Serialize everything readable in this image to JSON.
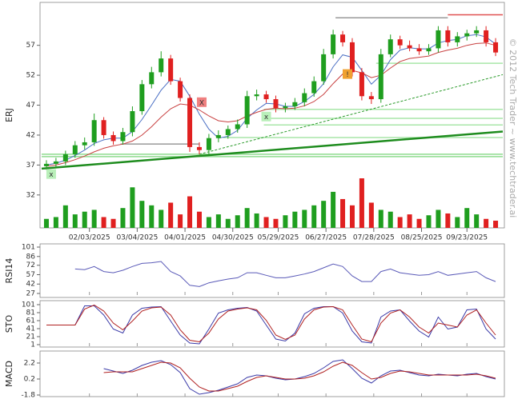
{
  "watermark": "© 2012 Tech Trader ~ www.techtrader.ai",
  "chart_data": [
    {
      "type": "candlestick",
      "label": "ERJ",
      "up_color": "#1f9e1f",
      "down_color": "#e02020",
      "ma_colors": [
        "#4a6fc4",
        "#c84040"
      ],
      "x": [
        2,
        6,
        10,
        14,
        18,
        22,
        26,
        30,
        34,
        38,
        42,
        46,
        50,
        54,
        58,
        62,
        66,
        70,
        74,
        78,
        82,
        86,
        90,
        94,
        98,
        102,
        106,
        110,
        114,
        118,
        122,
        126,
        130,
        134,
        138,
        142,
        146,
        150,
        154,
        158,
        162,
        166,
        170,
        174,
        178,
        182,
        186,
        190
      ],
      "xlim": [
        0,
        193
      ],
      "xticks": [
        {
          "value": 20,
          "label": "02/03/2025"
        },
        {
          "value": 40,
          "label": "03/04/2025"
        },
        {
          "value": 60,
          "label": "04/01/2025"
        },
        {
          "value": 80,
          "label": "04/30/2025"
        },
        {
          "value": 99,
          "label": "05/29/2025"
        },
        {
          "value": 119,
          "label": "06/27/2025"
        },
        {
          "value": 139,
          "label": "07/28/2025"
        },
        {
          "value": 159,
          "label": "08/25/2025"
        },
        {
          "value": 178,
          "label": "09/23/2025"
        }
      ],
      "ylim": [
        26.5,
        63.9
      ],
      "yticks": [
        32,
        37,
        42,
        47,
        52,
        57
      ],
      "open": [
        36.8,
        37.2,
        37.6,
        38.8,
        40.3,
        40.8,
        44.5,
        42.0,
        41.0,
        42.5,
        46.0,
        50.5,
        52.5,
        54.8,
        51.0,
        48.2,
        40.0,
        39.5,
        41.5,
        42.0,
        43.0,
        43.8,
        48.5,
        48.8,
        48.0,
        46.5,
        46.8,
        47.5,
        49.0,
        51.0,
        55.5,
        58.8,
        57.5,
        52.5,
        48.5,
        48.0,
        55.5,
        58.0,
        57.0,
        56.5,
        56.0,
        56.5,
        59.5,
        57.5,
        58.5,
        59.0,
        59.5,
        57.5
      ],
      "high": [
        37.8,
        38.2,
        39.4,
        41.0,
        41.6,
        45.6,
        45.0,
        42.6,
        43.2,
        46.8,
        51.2,
        53.4,
        56.0,
        55.4,
        51.6,
        48.8,
        40.8,
        42.2,
        42.8,
        43.6,
        44.6,
        49.4,
        49.6,
        49.4,
        48.6,
        47.4,
        48.2,
        49.8,
        51.8,
        56.4,
        59.6,
        59.4,
        58.2,
        53.2,
        49.2,
        56.4,
        58.8,
        58.6,
        57.8,
        57.2,
        57.2,
        60.2,
        60.2,
        59.2,
        59.6,
        60.2,
        60.2,
        58.2
      ],
      "low": [
        36.2,
        36.6,
        37.0,
        38.2,
        39.6,
        40.2,
        41.4,
        40.4,
        40.4,
        41.8,
        45.4,
        49.8,
        51.8,
        50.4,
        47.6,
        39.2,
        38.8,
        38.8,
        40.8,
        41.4,
        42.4,
        43.2,
        47.8,
        47.4,
        45.8,
        45.8,
        46.2,
        46.8,
        48.4,
        50.4,
        54.8,
        56.8,
        51.8,
        47.8,
        47.2,
        47.4,
        55.0,
        56.4,
        56.0,
        55.4,
        55.4,
        55.8,
        56.8,
        56.8,
        57.8,
        58.4,
        56.8,
        55.2
      ],
      "close": [
        37.2,
        37.6,
        38.8,
        40.3,
        40.8,
        44.5,
        42.0,
        41.0,
        42.5,
        46.0,
        50.5,
        52.5,
        54.8,
        51.0,
        48.2,
        40.0,
        39.5,
        41.5,
        42.0,
        43.0,
        43.8,
        48.5,
        48.8,
        48.0,
        46.5,
        46.8,
        47.5,
        49.0,
        51.0,
        55.5,
        58.8,
        57.5,
        52.5,
        48.5,
        48.0,
        55.5,
        58.0,
        57.0,
        56.5,
        56.0,
        56.5,
        59.5,
        57.5,
        58.5,
        59.0,
        59.5,
        57.5,
        55.8
      ],
      "volume": [
        10,
        12,
        25,
        15,
        18,
        20,
        12,
        10,
        22,
        45,
        30,
        25,
        20,
        28,
        15,
        35,
        18,
        12,
        15,
        10,
        14,
        22,
        16,
        12,
        10,
        14,
        18,
        20,
        25,
        30,
        40,
        32,
        25,
        55,
        28,
        20,
        18,
        12,
        15,
        10,
        14,
        20,
        16,
        12,
        22,
        15,
        10,
        8
      ],
      "moving_averages": [
        {
          "color": "#4a6fc4",
          "values": [
            37.0,
            37.3,
            37.8,
            38.6,
            39.5,
            40.6,
            41.2,
            41.5,
            41.5,
            42.6,
            44.6,
            47.0,
            49.5,
            51.3,
            51.0,
            48.5,
            45.5,
            43.0,
            41.5,
            41.8,
            42.8,
            44.8,
            46.2,
            47.3,
            47.2,
            46.8,
            46.8,
            47.6,
            48.8,
            50.6,
            53.4,
            55.4,
            55.0,
            52.8,
            50.5,
            52.0,
            54.6,
            56.2,
            56.6,
            56.4,
            56.4,
            57.4,
            57.8,
            58.0,
            58.6,
            58.8,
            58.4,
            57.2
          ]
        },
        {
          "color": "#c84040",
          "values": [
            36.8,
            37.0,
            37.4,
            37.9,
            38.5,
            39.2,
            39.8,
            40.2,
            40.5,
            41.0,
            42.0,
            43.4,
            45.0,
            46.4,
            47.2,
            47.0,
            46.2,
            45.2,
            44.4,
            44.2,
            44.4,
            45.2,
            45.8,
            46.3,
            46.5,
            46.4,
            46.5,
            46.9,
            47.6,
            48.8,
            50.6,
            52.2,
            52.8,
            52.4,
            51.6,
            52.0,
            53.2,
            54.3,
            54.8,
            55.0,
            55.2,
            55.8,
            56.2,
            56.5,
            57.0,
            57.3,
            57.4,
            57.0
          ]
        }
      ],
      "levels": [
        {
          "price": 38.4,
          "start": 0,
          "end": 193,
          "color": "#8fdc8f"
        },
        {
          "price": 38.8,
          "start": 0,
          "end": 193,
          "color": "#8fdc8f"
        },
        {
          "price": 41.6,
          "start": 76,
          "end": 193,
          "color": "#a8e6a8"
        },
        {
          "price": 43.7,
          "start": 93,
          "end": 193,
          "color": "#a8e6a8"
        },
        {
          "price": 44.8,
          "start": 93,
          "end": 193,
          "color": "#a8e6a8"
        },
        {
          "price": 46.3,
          "start": 93,
          "end": 193,
          "color": "#a8e6a8"
        },
        {
          "price": 54.0,
          "start": 140,
          "end": 193,
          "color": "#a8e6a8"
        },
        {
          "price": 40.5,
          "start": 33,
          "end": 66,
          "color": "#999999"
        },
        {
          "price": 61.6,
          "start": 123,
          "end": 170,
          "color": "#999999"
        },
        {
          "price": 62.1,
          "start": 170,
          "end": 193,
          "color": "#e05050"
        }
      ],
      "trendlines": [
        {
          "x": [
            0,
            193
          ],
          "y": [
            36.4,
            42.6
          ],
          "color": "#1e8c1e",
          "dashed": false
        },
        {
          "x": [
            66,
            193
          ],
          "y": [
            38.8,
            52.1
          ],
          "color": "#2a9a2a",
          "dashed": true
        }
      ],
      "annotations": [
        {
          "label": "x",
          "x": 4,
          "y": 35.5,
          "color": "#b9efb9"
        },
        {
          "label": "X",
          "x": 67,
          "y": 47.5,
          "color": "#f08080"
        },
        {
          "label": "x",
          "x": 94,
          "y": 45.1,
          "color": "#b9efb9"
        },
        {
          "label": "!",
          "x": 128,
          "y": 52.2,
          "color": "#f0a030"
        }
      ]
    },
    {
      "type": "line",
      "label": "RSI14",
      "ylim": [
        27,
        101
      ],
      "yticks": [
        27,
        42,
        57,
        72,
        86,
        101
      ],
      "series": [
        {
          "color": "#5a5ab8",
          "values": [
            null,
            null,
            null,
            66,
            65,
            70,
            62,
            60,
            64,
            70,
            75,
            76,
            78,
            62,
            55,
            40,
            38,
            44,
            47,
            50,
            52,
            60,
            60,
            56,
            52,
            52,
            55,
            58,
            62,
            68,
            74,
            70,
            55,
            46,
            46,
            62,
            66,
            60,
            58,
            56,
            57,
            62,
            56,
            58,
            60,
            62,
            52,
            46
          ]
        }
      ]
    },
    {
      "type": "line",
      "label": "STO",
      "ylim": [
        1,
        101
      ],
      "yticks": [
        1,
        21,
        41,
        61,
        81,
        101
      ],
      "series": [
        {
          "color": "#3a3aa8",
          "values": [
            50,
            50,
            50,
            50,
            98,
            98,
            75,
            40,
            30,
            75,
            92,
            95,
            96,
            60,
            25,
            5,
            3,
            40,
            80,
            88,
            92,
            94,
            85,
            50,
            15,
            10,
            30,
            78,
            92,
            96,
            96,
            80,
            35,
            8,
            5,
            70,
            85,
            88,
            60,
            35,
            20,
            70,
            40,
            45,
            88,
            90,
            40,
            15
          ]
        },
        {
          "color": "#b02020",
          "values": [
            50,
            50,
            50,
            50,
            90,
            100,
            85,
            55,
            38,
            60,
            85,
            93,
            95,
            75,
            38,
            12,
            8,
            30,
            65,
            85,
            90,
            93,
            88,
            62,
            25,
            14,
            25,
            65,
            88,
            95,
            96,
            88,
            50,
            15,
            8,
            55,
            80,
            88,
            70,
            45,
            30,
            55,
            50,
            45,
            75,
            88,
            55,
            25
          ]
        }
      ]
    },
    {
      "type": "line",
      "label": "MACD",
      "ylim": [
        -1.8,
        3.5
      ],
      "yticks": [
        -1.8,
        0.2,
        2.2
      ],
      "series": [
        {
          "color": "#3a3aa8",
          "values": [
            null,
            null,
            null,
            null,
            null,
            null,
            1.5,
            1.2,
            0.9,
            1.3,
            1.9,
            2.3,
            2.5,
            2.0,
            1.0,
            -1.0,
            -1.7,
            -1.5,
            -1.2,
            -0.8,
            -0.4,
            0.4,
            0.7,
            0.6,
            0.3,
            0.1,
            0.2,
            0.5,
            0.9,
            1.6,
            2.4,
            2.6,
            1.5,
            0.3,
            -0.3,
            0.6,
            1.2,
            1.3,
            1.0,
            0.7,
            0.6,
            0.8,
            0.7,
            0.6,
            0.8,
            0.9,
            0.5,
            0.2
          ]
        },
        {
          "color": "#b02020",
          "values": [
            null,
            null,
            null,
            null,
            null,
            null,
            1.0,
            1.1,
            1.1,
            1.1,
            1.5,
            1.9,
            2.3,
            2.2,
            1.6,
            0.3,
            -0.8,
            -1.3,
            -1.3,
            -1.0,
            -0.7,
            -0.1,
            0.4,
            0.6,
            0.4,
            0.2,
            0.2,
            0.3,
            0.6,
            1.1,
            1.8,
            2.3,
            1.9,
            1.0,
            0.2,
            0.4,
            0.9,
            1.2,
            1.1,
            0.9,
            0.7,
            0.7,
            0.7,
            0.7,
            0.7,
            0.8,
            0.6,
            0.3
          ]
        }
      ]
    }
  ]
}
